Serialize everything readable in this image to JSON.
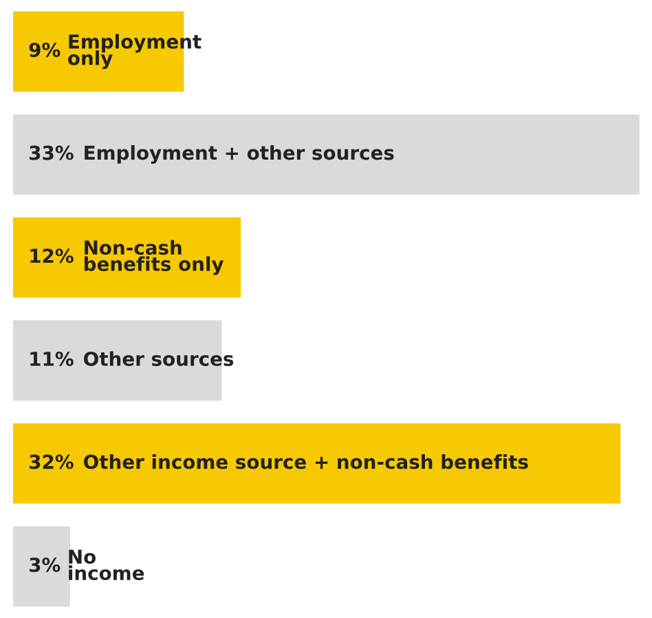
{
  "chart_data": {
    "type": "bar",
    "orientation": "horizontal",
    "categories": [
      "Employment\nonly",
      "Employment + other sources",
      "Non-cash\nbenefits only",
      "Other sources",
      "Other income source + non-cash benefits",
      "No\nincome"
    ],
    "values": [
      9,
      33,
      12,
      11,
      32,
      3
    ],
    "value_labels": [
      "9%",
      "33%",
      "12%",
      "11%",
      "32%",
      "3%"
    ],
    "colors": [
      "#f7c900",
      "#dadada",
      "#f7c900",
      "#dadada",
      "#f7c900",
      "#dadada"
    ]
  }
}
